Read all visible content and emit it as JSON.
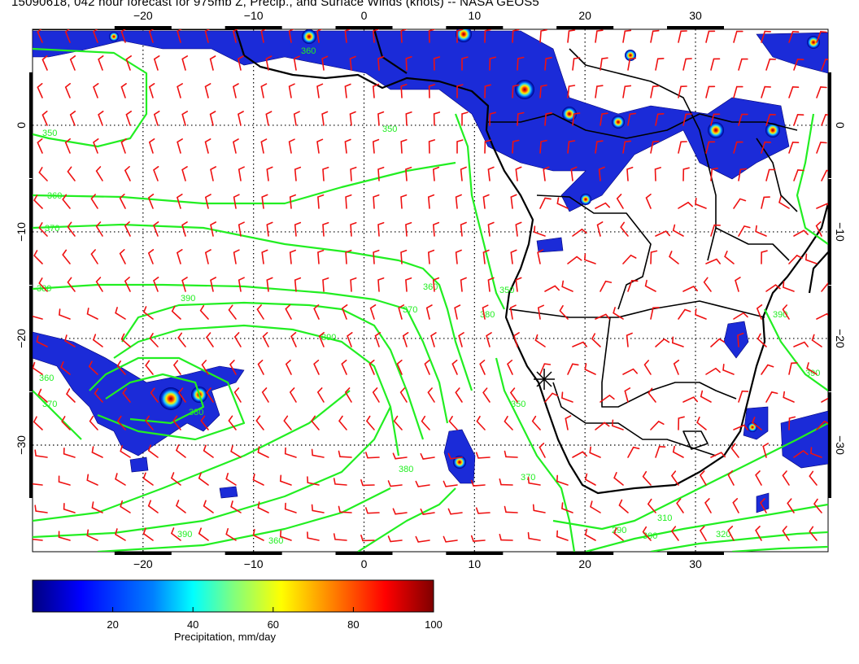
{
  "title": "15090618, 042 hour forecast for 975mb Z, Precip., and Surface Winds (knots) -- NASA GEOS5",
  "map": {
    "lon_range": [
      -30,
      42
    ],
    "lat_range": [
      -40,
      9
    ],
    "lon_ticks": [
      -20,
      -10,
      0,
      10,
      20,
      30
    ],
    "lat_ticks": [
      0,
      -10,
      -20,
      -30
    ],
    "lon_tick_labels": [
      "−20",
      "−10",
      "0",
      "10",
      "20",
      "30"
    ],
    "lat_tick_labels": [
      "0",
      "−10",
      "−20",
      "−30"
    ],
    "gridlines": "dotted",
    "contour_color": "#22ee22",
    "wind_barb_color": "#ee1111",
    "coastline_color": "#000000",
    "contour_labels": [
      "350",
      "360",
      "370",
      "380",
      "390",
      "360",
      "370",
      "380",
      "390",
      "350",
      "360",
      "370",
      "380",
      "390",
      "350",
      "350",
      "360",
      "370",
      "380",
      "390",
      "290",
      "300",
      "310",
      "320",
      "360",
      "390"
    ],
    "station_marker": "star-icon"
  },
  "colorbar": {
    "label": "Precipitation, mm/day",
    "ticks": [
      "20",
      "40",
      "60",
      "80",
      "100"
    ],
    "tick_values": [
      20,
      40,
      60,
      80,
      100
    ],
    "range": [
      0,
      100
    ],
    "colors": [
      "#00007f",
      "#0000ff",
      "#007fff",
      "#00ffff",
      "#7fff7f",
      "#ffff00",
      "#ff7f00",
      "#ff0000",
      "#7f0000"
    ]
  }
}
